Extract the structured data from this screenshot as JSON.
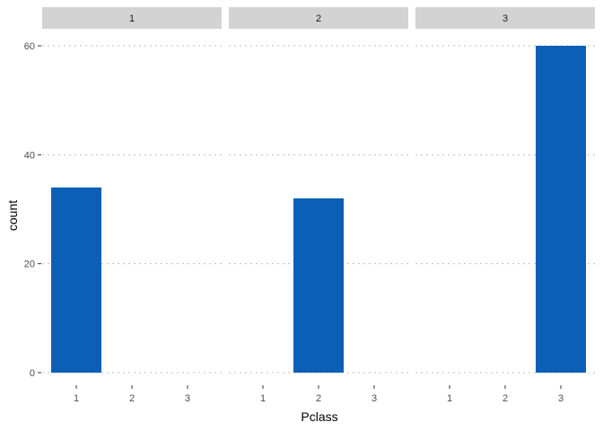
{
  "chart_data": {
    "type": "bar",
    "facets": [
      "1",
      "2",
      "3"
    ],
    "categories": [
      "1",
      "2",
      "3"
    ],
    "panels": [
      {
        "facet": "1",
        "values": [
          34,
          0,
          0
        ]
      },
      {
        "facet": "2",
        "values": [
          0,
          32,
          0
        ]
      },
      {
        "facet": "3",
        "values": [
          0,
          0,
          60
        ]
      }
    ],
    "xlabel": "Pclass",
    "ylabel": "count",
    "ylim": [
      0,
      60
    ],
    "yticks": [
      0,
      20,
      40,
      60
    ],
    "grid": true,
    "bar_color": "#0b5fb7",
    "strip_color": "#d3d3d3"
  }
}
